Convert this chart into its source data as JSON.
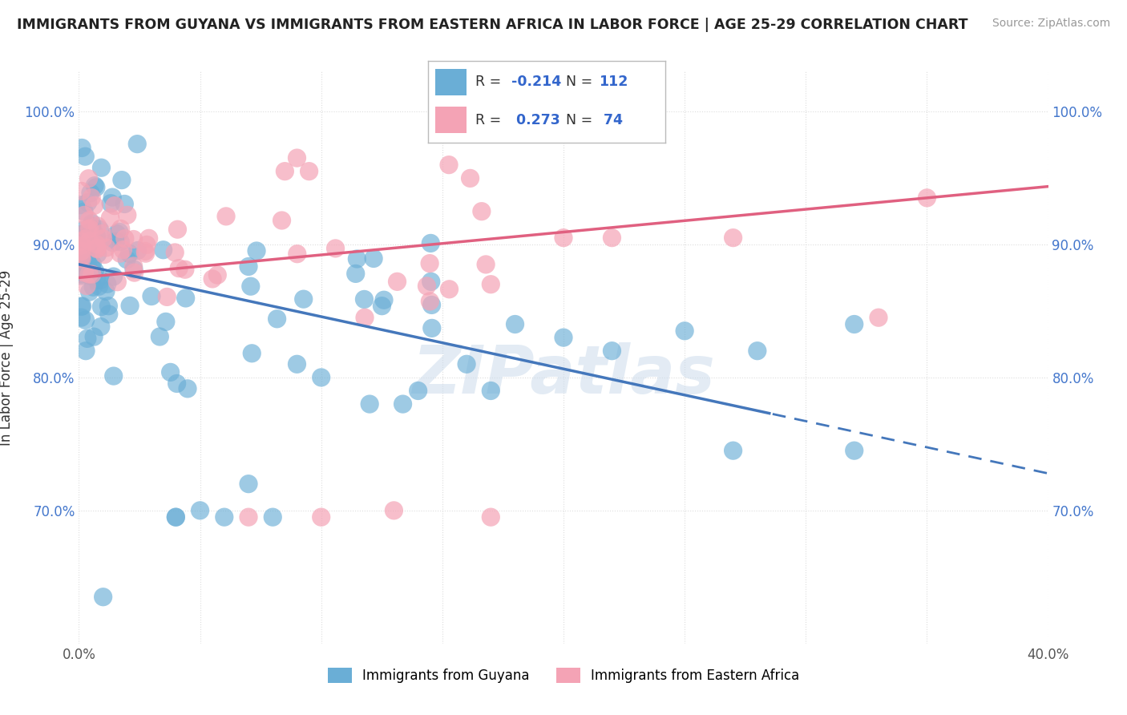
{
  "title": "IMMIGRANTS FROM GUYANA VS IMMIGRANTS FROM EASTERN AFRICA IN LABOR FORCE | AGE 25-29 CORRELATION CHART",
  "source": "Source: ZipAtlas.com",
  "ylabel": "In Labor Force | Age 25-29",
  "xlim": [
    0.0,
    0.4
  ],
  "ylim": [
    0.6,
    1.03
  ],
  "xticks": [
    0.0,
    0.05,
    0.1,
    0.15,
    0.2,
    0.25,
    0.3,
    0.35,
    0.4
  ],
  "xtick_labels": [
    "0.0%",
    "",
    "",
    "",
    "",
    "",
    "",
    "",
    "40.0%"
  ],
  "yticks": [
    0.7,
    0.8,
    0.9,
    1.0
  ],
  "ytick_labels_left": [
    "70.0%",
    "80.0%",
    "90.0%",
    "100.0%"
  ],
  "ytick_labels_right": [
    "70.0%",
    "80.0%",
    "90.0%",
    "100.0%"
  ],
  "guyana_color": "#6aaed6",
  "eastern_color": "#f4a3b5",
  "guyana_R": -0.214,
  "guyana_N": 112,
  "eastern_R": 0.273,
  "eastern_N": 74,
  "guyana_line_color": "#4477bb",
  "eastern_line_color": "#e06080",
  "watermark": "ZIPatlas",
  "background_color": "#ffffff",
  "grid_color": "#dddddd",
  "legend_guyana_label": "R = -0.214   N = 112",
  "legend_eastern_label": "R =  0.273   N =  74",
  "bottom_legend_guyana": "Immigrants from Guyana",
  "bottom_legend_eastern": "Immigrants from Eastern Africa"
}
